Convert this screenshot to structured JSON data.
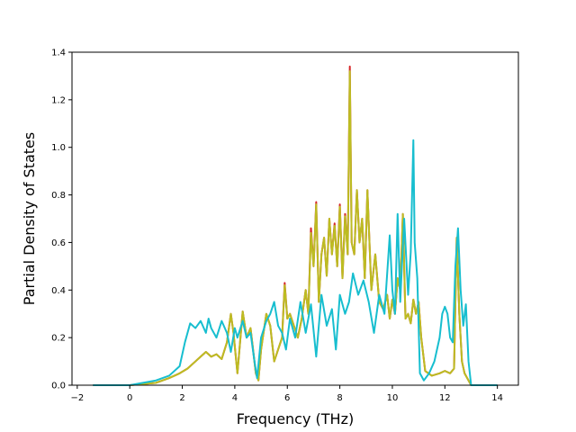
{
  "chart_data": {
    "type": "line",
    "title": "",
    "xlabel": "Frequency (THz)",
    "ylabel": "Partial Density of States",
    "xlim": [
      -2.2,
      14.8
    ],
    "ylim": [
      0,
      1.4
    ],
    "xticks": [
      -2,
      0,
      2,
      4,
      6,
      8,
      10,
      12,
      14
    ],
    "yticks": [
      0.0,
      0.2,
      0.4,
      0.6,
      0.8,
      1.0,
      1.2,
      1.4
    ],
    "xtick_labels": [
      "−2",
      "0",
      "2",
      "4",
      "6",
      "8",
      "10",
      "12",
      "14"
    ],
    "ytick_labels": [
      "0.0",
      "0.2",
      "0.4",
      "0.6",
      "0.8",
      "1.0",
      "1.2",
      "1.4"
    ],
    "grid": false,
    "legend": "none",
    "series": [
      {
        "color": "#d62728",
        "x": [
          -1.4,
          0.0,
          1.0,
          1.5,
          1.9,
          2.2,
          2.5,
          2.7,
          2.9,
          3.1,
          3.3,
          3.5,
          3.7,
          3.85,
          3.95,
          4.1,
          4.3,
          4.45,
          4.6,
          4.8,
          4.9,
          5.0,
          5.2,
          5.35,
          5.5,
          5.65,
          5.8,
          5.9,
          6.0,
          6.1,
          6.25,
          6.4,
          6.55,
          6.7,
          6.8,
          6.9,
          7.0,
          7.1,
          7.2,
          7.3,
          7.4,
          7.5,
          7.6,
          7.7,
          7.8,
          7.9,
          8.0,
          8.1,
          8.2,
          8.3,
          8.38,
          8.45,
          8.55,
          8.65,
          8.75,
          8.85,
          8.95,
          9.05,
          9.2,
          9.35,
          9.5,
          9.65,
          9.8,
          9.9,
          10.0,
          10.1,
          10.2,
          10.3,
          10.4,
          10.5,
          10.6,
          10.7,
          10.8,
          10.9,
          11.0,
          11.1,
          11.25,
          11.5,
          11.8,
          12.0,
          12.2,
          12.35,
          12.45,
          12.55,
          12.65,
          12.75,
          12.85,
          13.0,
          14.0
        ],
        "y": [
          0.0,
          0.0,
          0.01,
          0.03,
          0.05,
          0.07,
          0.1,
          0.12,
          0.14,
          0.12,
          0.13,
          0.11,
          0.18,
          0.3,
          0.22,
          0.05,
          0.31,
          0.2,
          0.24,
          0.05,
          0.02,
          0.15,
          0.3,
          0.25,
          0.1,
          0.15,
          0.2,
          0.43,
          0.28,
          0.3,
          0.25,
          0.2,
          0.28,
          0.4,
          0.3,
          0.66,
          0.5,
          0.77,
          0.35,
          0.55,
          0.62,
          0.46,
          0.7,
          0.55,
          0.68,
          0.5,
          0.76,
          0.45,
          0.72,
          0.55,
          1.34,
          0.6,
          0.55,
          0.82,
          0.6,
          0.7,
          0.45,
          0.82,
          0.4,
          0.55,
          0.35,
          0.32,
          0.38,
          0.28,
          0.36,
          0.3,
          0.45,
          0.4,
          0.72,
          0.28,
          0.3,
          0.26,
          0.36,
          0.3,
          0.35,
          0.2,
          0.06,
          0.04,
          0.05,
          0.06,
          0.05,
          0.07,
          0.62,
          0.3,
          0.1,
          0.05,
          0.03,
          0.0,
          0.0
        ]
      },
      {
        "color": "#bcbd22",
        "x": [
          -1.4,
          0.0,
          1.0,
          1.5,
          1.9,
          2.2,
          2.5,
          2.7,
          2.9,
          3.1,
          3.3,
          3.5,
          3.7,
          3.85,
          3.95,
          4.1,
          4.3,
          4.45,
          4.6,
          4.8,
          4.9,
          5.0,
          5.2,
          5.35,
          5.5,
          5.65,
          5.8,
          5.9,
          6.0,
          6.1,
          6.25,
          6.4,
          6.55,
          6.7,
          6.8,
          6.9,
          7.0,
          7.1,
          7.2,
          7.3,
          7.4,
          7.5,
          7.6,
          7.7,
          7.8,
          7.9,
          8.0,
          8.1,
          8.2,
          8.3,
          8.38,
          8.45,
          8.55,
          8.65,
          8.75,
          8.85,
          8.95,
          9.05,
          9.2,
          9.35,
          9.5,
          9.65,
          9.8,
          9.9,
          10.0,
          10.1,
          10.2,
          10.3,
          10.4,
          10.5,
          10.6,
          10.7,
          10.8,
          10.9,
          11.0,
          11.1,
          11.25,
          11.5,
          11.8,
          12.0,
          12.2,
          12.35,
          12.45,
          12.55,
          12.65,
          12.75,
          12.85,
          13.0,
          14.0
        ],
        "y": [
          0.0,
          0.0,
          0.01,
          0.03,
          0.05,
          0.07,
          0.1,
          0.12,
          0.14,
          0.12,
          0.13,
          0.11,
          0.18,
          0.3,
          0.22,
          0.05,
          0.31,
          0.2,
          0.24,
          0.05,
          0.02,
          0.15,
          0.3,
          0.25,
          0.1,
          0.15,
          0.2,
          0.42,
          0.28,
          0.3,
          0.25,
          0.2,
          0.28,
          0.4,
          0.3,
          0.64,
          0.5,
          0.76,
          0.35,
          0.55,
          0.62,
          0.46,
          0.7,
          0.55,
          0.67,
          0.5,
          0.75,
          0.45,
          0.71,
          0.55,
          1.32,
          0.6,
          0.55,
          0.82,
          0.6,
          0.7,
          0.45,
          0.82,
          0.4,
          0.55,
          0.35,
          0.32,
          0.38,
          0.28,
          0.36,
          0.3,
          0.45,
          0.4,
          0.72,
          0.28,
          0.3,
          0.26,
          0.36,
          0.3,
          0.35,
          0.2,
          0.06,
          0.04,
          0.05,
          0.06,
          0.05,
          0.07,
          0.62,
          0.3,
          0.1,
          0.05,
          0.03,
          0.0,
          0.0
        ]
      },
      {
        "color": "#17becf",
        "x": [
          -1.4,
          0.0,
          1.0,
          1.5,
          1.9,
          2.1,
          2.3,
          2.5,
          2.7,
          2.9,
          3.0,
          3.1,
          3.3,
          3.5,
          3.7,
          3.85,
          4.0,
          4.1,
          4.3,
          4.45,
          4.6,
          4.75,
          4.85,
          5.0,
          5.2,
          5.35,
          5.5,
          5.65,
          5.8,
          5.95,
          6.1,
          6.3,
          6.5,
          6.7,
          6.9,
          7.1,
          7.3,
          7.5,
          7.7,
          7.85,
          8.0,
          8.2,
          8.35,
          8.5,
          8.7,
          8.9,
          9.1,
          9.3,
          9.5,
          9.7,
          9.9,
          10.0,
          10.1,
          10.2,
          10.3,
          10.45,
          10.6,
          10.7,
          10.8,
          10.85,
          10.95,
          11.05,
          11.2,
          11.4,
          11.6,
          11.8,
          11.9,
          12.0,
          12.1,
          12.2,
          12.3,
          12.4,
          12.5,
          12.6,
          12.7,
          12.8,
          12.9,
          13.0,
          14.0
        ],
        "y": [
          0.0,
          0.0,
          0.02,
          0.04,
          0.08,
          0.18,
          0.26,
          0.24,
          0.27,
          0.22,
          0.28,
          0.24,
          0.2,
          0.27,
          0.22,
          0.14,
          0.24,
          0.2,
          0.27,
          0.2,
          0.22,
          0.1,
          0.03,
          0.2,
          0.27,
          0.3,
          0.35,
          0.25,
          0.22,
          0.15,
          0.28,
          0.2,
          0.35,
          0.22,
          0.34,
          0.12,
          0.38,
          0.25,
          0.32,
          0.15,
          0.38,
          0.3,
          0.35,
          0.47,
          0.38,
          0.44,
          0.35,
          0.22,
          0.38,
          0.3,
          0.63,
          0.4,
          0.3,
          0.72,
          0.35,
          0.7,
          0.38,
          0.56,
          1.03,
          0.6,
          0.45,
          0.05,
          0.02,
          0.05,
          0.1,
          0.2,
          0.3,
          0.33,
          0.3,
          0.2,
          0.18,
          0.5,
          0.66,
          0.4,
          0.25,
          0.34,
          0.1,
          0.0,
          0.0
        ]
      }
    ]
  }
}
